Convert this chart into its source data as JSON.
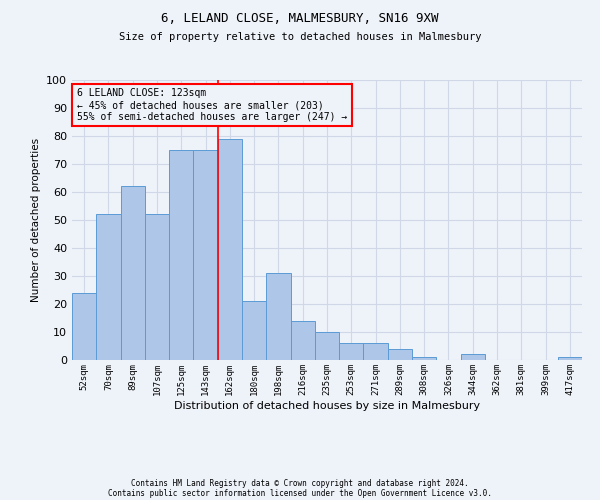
{
  "title1": "6, LELAND CLOSE, MALMESBURY, SN16 9XW",
  "title2": "Size of property relative to detached houses in Malmesbury",
  "xlabel": "Distribution of detached houses by size in Malmesbury",
  "ylabel": "Number of detached properties",
  "footnote1": "Contains HM Land Registry data © Crown copyright and database right 2024.",
  "footnote2": "Contains public sector information licensed under the Open Government Licence v3.0.",
  "annotation_title": "6 LELAND CLOSE: 123sqm",
  "annotation_line1": "← 45% of detached houses are smaller (203)",
  "annotation_line2": "55% of semi-detached houses are larger (247) →",
  "bar_labels": [
    "52sqm",
    "70sqm",
    "89sqm",
    "107sqm",
    "125sqm",
    "143sqm",
    "162sqm",
    "180sqm",
    "198sqm",
    "216sqm",
    "235sqm",
    "253sqm",
    "271sqm",
    "289sqm",
    "308sqm",
    "326sqm",
    "344sqm",
    "362sqm",
    "381sqm",
    "399sqm",
    "417sqm"
  ],
  "bar_values": [
    24,
    52,
    62,
    52,
    75,
    75,
    79,
    21,
    31,
    14,
    10,
    6,
    6,
    4,
    1,
    0,
    2,
    0,
    0,
    0,
    1
  ],
  "bar_color": "#aec6e8",
  "bar_edge_color": "#5b9bd5",
  "grid_color": "#d0d8e8",
  "property_line_x": 5.5,
  "property_line_color": "red",
  "annotation_box_color": "red",
  "ylim": [
    0,
    100
  ],
  "yticks": [
    0,
    10,
    20,
    30,
    40,
    50,
    60,
    70,
    80,
    90,
    100
  ],
  "background_color": "#eef2f9"
}
